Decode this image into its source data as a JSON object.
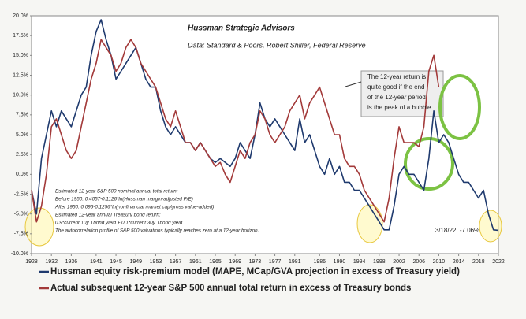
{
  "chart_data": {
    "type": "line",
    "title": "Hussman Strategic Advisors",
    "subtitle": "Data: Standard & Poors, Robert Shiller, Federal Reserve",
    "callout": [
      "The 12-year return is",
      "quite good if the end",
      "of the 12-year period",
      "is the peak of a bubble"
    ],
    "note": [
      "Estimated 12-year S&P 500 nominal annual total return:",
      "Before 1950: 0.4057-0.1126*ln(Hussman margin-adjusted P/E)",
      "After 1950: 0.096-0.1256*ln(nonfinancial market cap/gross value-added)",
      "Estimated 12-year annual Treasury bond return:",
      "0.9*current 10y Tbond yield + 0.1*current 30y Tbond yield",
      "The autocorrelation profile of S&P 500 valuations typically reaches zero at a 12-year horizon."
    ],
    "last_label": "3/18/22: -7.06%",
    "x": [
      1928,
      1929,
      1930,
      1931,
      1932,
      1933,
      1934,
      1935,
      1936,
      1937,
      1938,
      1939,
      1940,
      1941,
      1942,
      1943,
      1944,
      1945,
      1946,
      1947,
      1948,
      1949,
      1950,
      1951,
      1952,
      1953,
      1954,
      1955,
      1956,
      1957,
      1958,
      1959,
      1960,
      1961,
      1962,
      1963,
      1964,
      1965,
      1966,
      1967,
      1968,
      1969,
      1970,
      1971,
      1972,
      1973,
      1974,
      1975,
      1976,
      1977,
      1978,
      1979,
      1980,
      1981,
      1982,
      1983,
      1984,
      1985,
      1986,
      1987,
      1988,
      1989,
      1990,
      1991,
      1992,
      1993,
      1994,
      1995,
      1996,
      1997,
      1998,
      1999,
      2000,
      2001,
      2002,
      2003,
      2004,
      2005,
      2006,
      2007,
      2008,
      2009,
      2010,
      2011,
      2012,
      2013,
      2014,
      2015,
      2016,
      2017,
      2018,
      2019,
      2020,
      2021,
      2022
    ],
    "series": [
      {
        "name": "Hussman equity risk-premium model (MAPE, MCap/GVA projection in excess of Treasury yield)",
        "color": "#1f3a6e",
        "values": [
          -2,
          -5,
          2,
          5,
          8,
          6,
          8,
          7,
          6,
          8,
          10,
          11,
          15,
          18,
          19.5,
          17,
          15,
          12,
          13,
          14,
          15,
          16,
          14,
          12,
          11,
          11,
          8,
          6,
          5,
          6,
          5,
          4,
          4,
          3,
          4,
          3,
          2,
          1.5,
          2,
          1.5,
          1,
          2,
          4,
          3,
          2,
          5,
          9,
          7,
          6,
          7,
          6,
          5,
          4,
          3,
          7,
          4,
          5,
          3,
          1,
          0,
          2,
          0,
          1,
          -1,
          -1,
          -2,
          -2,
          -3,
          -4,
          -5,
          -6,
          -7,
          -7,
          -4,
          0,
          1,
          0,
          0,
          -1,
          -2,
          2,
          8,
          4,
          5,
          4,
          2,
          0,
          -1,
          -1,
          -2,
          -3,
          -2,
          -5,
          -7,
          -7.06
        ]
      },
      {
        "name": "Actual subsequent 12-year S&P 500 annual total return in excess of Treasury bonds",
        "color": "#a33a3a",
        "values": [
          -2,
          -6,
          -4,
          0,
          6,
          7,
          5,
          3,
          2,
          3,
          6,
          9,
          12,
          14,
          17,
          16,
          15,
          13,
          14,
          16,
          17,
          16,
          14,
          13,
          12,
          11,
          9,
          7,
          6,
          8,
          6,
          4,
          4,
          3,
          4,
          3,
          2,
          1,
          1.5,
          0,
          -1,
          1,
          3,
          2,
          4,
          5,
          8,
          7,
          5,
          4,
          5,
          6,
          8,
          9,
          10,
          7,
          9,
          10,
          11,
          9,
          7,
          5,
          5,
          2,
          1,
          1,
          0,
          -2,
          -3,
          -4,
          -5,
          -6,
          -3,
          2,
          6,
          4,
          4,
          4,
          3.5,
          6,
          13,
          15,
          11,
          null,
          null,
          null,
          null,
          null,
          null,
          null,
          null,
          null,
          null,
          null,
          null
        ]
      }
    ],
    "xlim": [
      1928,
      2022
    ],
    "xticks": [
      1928,
      1932,
      1936,
      1941,
      1945,
      1949,
      1953,
      1957,
      1961,
      1965,
      1969,
      1973,
      1977,
      1981,
      1986,
      1990,
      1994,
      1998,
      2002,
      2006,
      2010,
      2014,
      2018,
      2022
    ],
    "ylim": [
      -10,
      20
    ],
    "yticks": [
      {
        "value": -10,
        "label": "-10.0%"
      },
      {
        "value": -7.5,
        "label": "-7.5%"
      },
      {
        "value": -5,
        "label": "-5.0%"
      },
      {
        "value": -2.5,
        "label": "-2.5%"
      },
      {
        "value": 0,
        "label": "0.0%"
      },
      {
        "value": 2.5,
        "label": "2.5%"
      },
      {
        "value": 5,
        "label": "5.0%"
      },
      {
        "value": 7.5,
        "label": "7.5%"
      },
      {
        "value": 10,
        "label": "10.0%"
      },
      {
        "value": 12.5,
        "label": "12.5%"
      },
      {
        "value": 15,
        "label": "15.0%"
      },
      {
        "value": 17.5,
        "label": "17.5%"
      },
      {
        "value": 20,
        "label": "20.0%"
      }
    ],
    "grid": false
  }
}
